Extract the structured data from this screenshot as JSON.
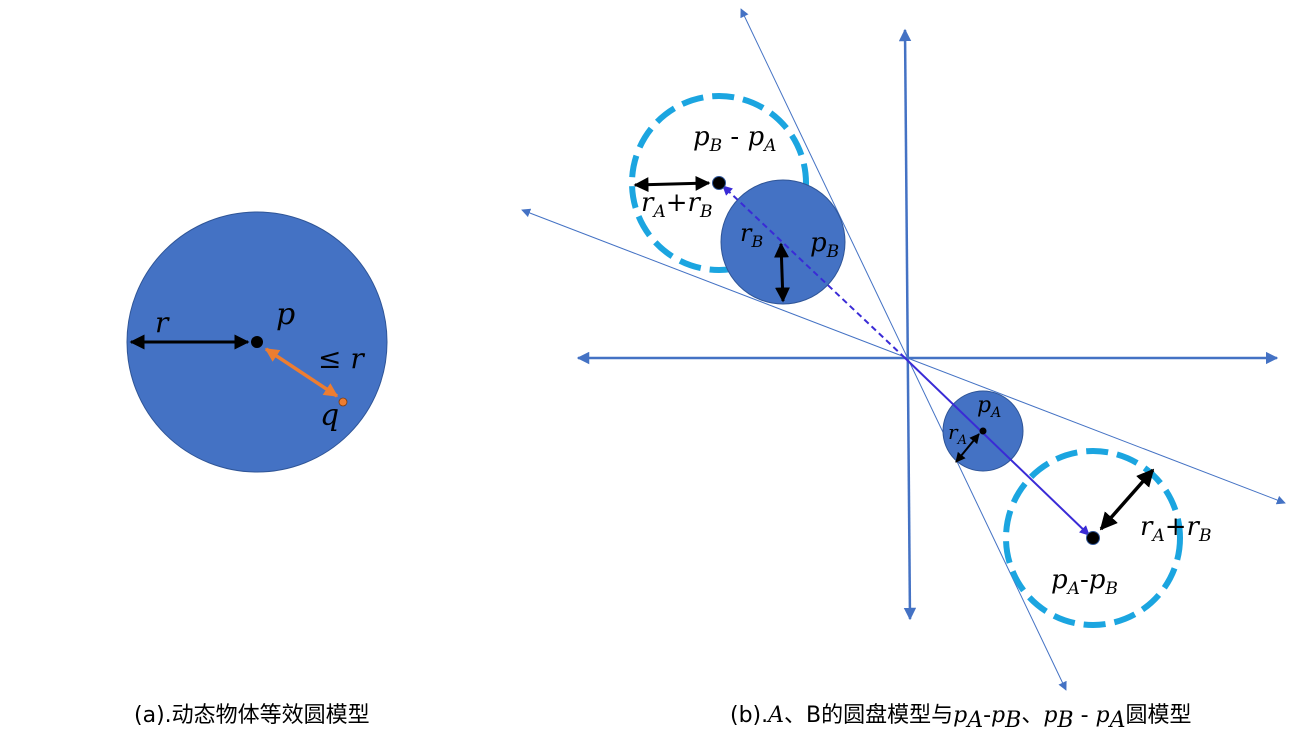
{
  "colors": {
    "disk_fill": "#4472C4",
    "disk_stroke": "#2F5597",
    "dashed_circle": "#1BA5E0",
    "axis": "#4472C4",
    "arrow_black": "#000000",
    "arrow_orange": "#ED7D31",
    "vector_blue": "#3A2BD6"
  },
  "panel_a": {
    "label_r": "r",
    "label_p": "p",
    "label_q": "q",
    "label_le": "≤ r",
    "caption": "(a).动态物体等效圆模型"
  },
  "panel_b": {
    "label_pb_minus_pa": {
      "base1": "p",
      "sub1": "B",
      "mid": " - ",
      "base2": "p",
      "sub2": "A"
    },
    "label_ra_plus_rb_top": {
      "base1": "r",
      "sub1": "A",
      "mid": "+",
      "base2": "r",
      "sub2": "B"
    },
    "label_rb": {
      "base": "r",
      "sub": "B"
    },
    "label_pb": {
      "base": "p",
      "sub": "B"
    },
    "label_pa": {
      "base": "p",
      "sub": "A"
    },
    "label_ra": {
      "base": "r",
      "sub": "A"
    },
    "label_ra_plus_rb_bottom": {
      "base1": "r",
      "sub1": "A",
      "mid": "+",
      "base2": "r",
      "sub2": "B"
    },
    "label_pa_minus_pb": {
      "base1": "p",
      "sub1": "A",
      "mid": "-",
      "base2": "p",
      "sub2": "B"
    },
    "caption": {
      "prefix": "(b).",
      "A": "A",
      "mid1": "、B的圆盘模型与",
      "p1": "p",
      "s1": "A",
      "dash1": "-",
      "p2": "p",
      "s2": "B",
      "mid2": "、",
      "p3": "p",
      "s3": "B",
      "dash2": " - ",
      "p4": "p",
      "s4": "A",
      "suffix": "圆模型"
    }
  }
}
